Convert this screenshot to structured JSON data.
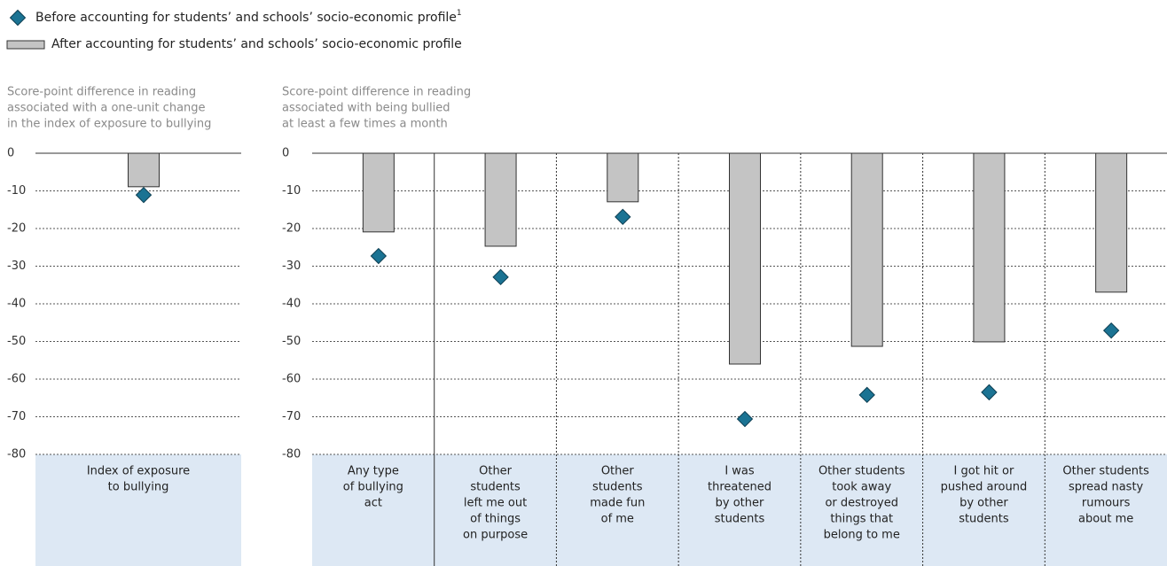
{
  "chart_data": [
    {
      "type": "bar",
      "y_label": [
        "Score-point difference in reading",
        "associated with a one-unit change",
        "in the index of exposure to bullying"
      ],
      "categories": [
        [
          "Index of exposure",
          "to bullying"
        ]
      ],
      "series": [
        {
          "name": "Before accounting for students’ and schools’ socio-economic profile",
          "note_mark": "1",
          "style": "diamond",
          "color": "#1b7393",
          "values": [
            -11.1
          ]
        },
        {
          "name": "After accounting for students’ and schools’ socio-economic profile",
          "style": "bar",
          "color": "#c4c4c4",
          "values": [
            -8.9
          ]
        }
      ],
      "ylim": [
        -80,
        0
      ],
      "yticks": [
        0,
        -10,
        -20,
        -30,
        -40,
        -50,
        -60,
        -70,
        -80
      ],
      "grid": true
    },
    {
      "type": "bar",
      "y_label": [
        "Score-point difference in reading",
        "associated with being bullied",
        "at least a few times a month"
      ],
      "categories": [
        [
          "Any type",
          "of bullying",
          "act"
        ],
        [
          "Other",
          "students",
          "left me out",
          "of things",
          "on purpose"
        ],
        [
          "Other",
          "students",
          "made fun",
          "of me"
        ],
        [
          "I was",
          "threatened",
          "by other",
          "students"
        ],
        [
          "Other students",
          "took away",
          "or destroyed",
          "things that",
          "belong to me"
        ],
        [
          "I got hit or",
          "pushed around",
          "by other",
          "students"
        ],
        [
          "Other students",
          "spread nasty",
          "rumours",
          "about me"
        ]
      ],
      "series": [
        {
          "style": "diamond",
          "color": "#1b7393",
          "values": [
            -27.3,
            -32.9,
            -16.9,
            -70.6,
            -64.2,
            -63.5,
            -47.1
          ]
        },
        {
          "style": "bar",
          "color": "#c4c4c4",
          "values": [
            -20.9,
            -24.7,
            -12.9,
            -56.0,
            -51.3,
            -50.1,
            -36.9
          ]
        }
      ],
      "ylim": [
        -80,
        0
      ],
      "yticks": [
        0,
        -10,
        -20,
        -30,
        -40,
        -50,
        -60,
        -70,
        -80
      ],
      "grid": true
    }
  ]
}
